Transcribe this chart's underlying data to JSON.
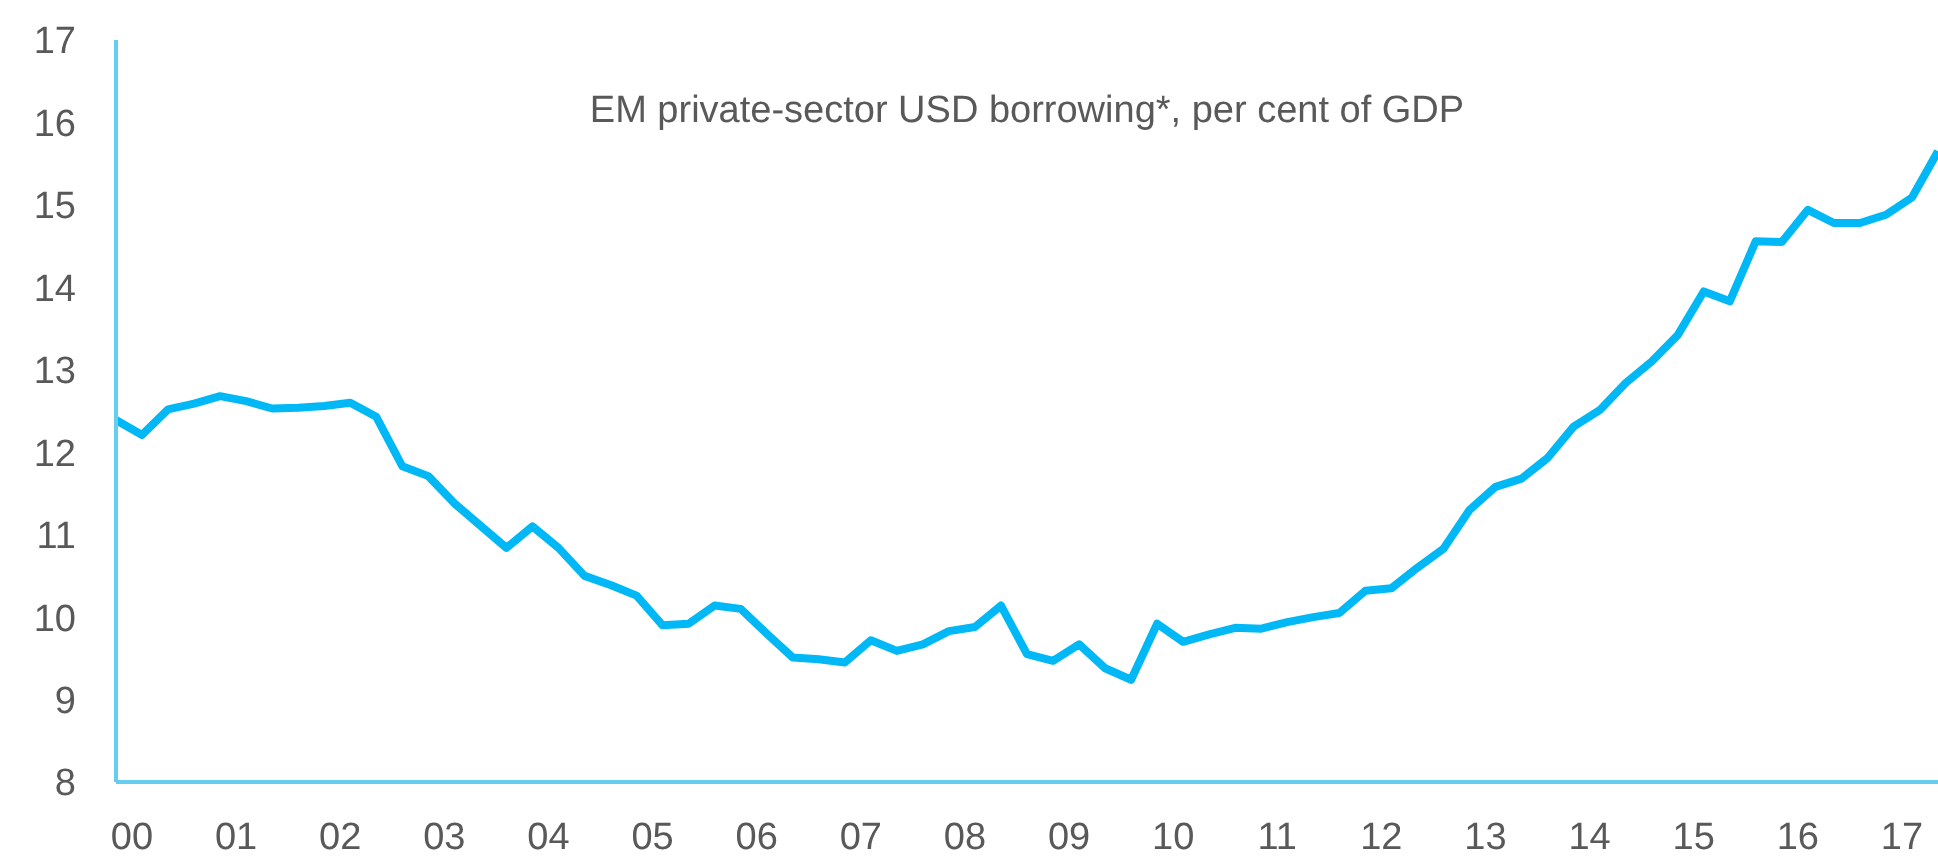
{
  "chart_data": {
    "type": "line",
    "title": "EM private-sector USD borrowing*, per cent of GDP",
    "x": [
      2000,
      2000.25,
      2000.5,
      2000.75,
      2001,
      2001.25,
      2001.5,
      2001.75,
      2002,
      2002.25,
      2002.5,
      2002.75,
      2003,
      2003.25,
      2003.5,
      2003.75,
      2004,
      2004.25,
      2004.5,
      2004.75,
      2005,
      2005.25,
      2005.5,
      2005.75,
      2006,
      2006.25,
      2006.5,
      2006.75,
      2007,
      2007.25,
      2007.5,
      2007.75,
      2008,
      2008.25,
      2008.5,
      2008.75,
      2009,
      2009.25,
      2009.5,
      2009.75,
      2010,
      2010.25,
      2010.5,
      2010.75,
      2011,
      2011.25,
      2011.5,
      2011.75,
      2012,
      2012.25,
      2012.5,
      2012.75,
      2013,
      2013.25,
      2013.5,
      2013.75,
      2014,
      2014.25,
      2014.5,
      2014.75,
      2015,
      2015.25,
      2015.5,
      2015.75,
      2016,
      2016.25,
      2016.5,
      2016.75,
      2017,
      2017.25,
      2017.5
    ],
    "series": [
      {
        "color": "#00b8f5",
        "values": [
          12.39,
          12.21,
          12.52,
          12.59,
          12.68,
          12.62,
          12.53,
          12.54,
          12.56,
          12.6,
          12.43,
          11.83,
          11.71,
          11.38,
          11.11,
          10.84,
          11.1,
          10.84,
          10.5,
          10.39,
          10.26,
          9.9,
          9.92,
          10.14,
          10.1,
          9.8,
          9.51,
          9.49,
          9.45,
          9.72,
          9.59,
          9.67,
          9.83,
          9.88,
          10.14,
          9.55,
          9.47,
          9.67,
          9.38,
          9.24,
          9.92,
          9.7,
          9.79,
          9.87,
          9.86,
          9.94,
          10.0,
          10.05,
          10.32,
          10.35,
          10.6,
          10.83,
          11.3,
          11.58,
          11.68,
          11.93,
          12.31,
          12.51,
          12.84,
          13.1,
          13.42,
          13.95,
          13.83,
          14.56,
          14.55,
          14.94,
          14.78,
          14.78,
          14.88,
          15.09,
          15.65
        ]
      }
    ],
    "xlim": [
      2000,
      2017.5
    ],
    "xticks": [
      {
        "value": 2000,
        "label": "00"
      },
      {
        "value": 2001,
        "label": "01"
      },
      {
        "value": 2002,
        "label": "02"
      },
      {
        "value": 2003,
        "label": "03"
      },
      {
        "value": 2004,
        "label": "04"
      },
      {
        "value": 2005,
        "label": "05"
      },
      {
        "value": 2006,
        "label": "06"
      },
      {
        "value": 2007,
        "label": "07"
      },
      {
        "value": 2008,
        "label": "08"
      },
      {
        "value": 2009,
        "label": "09"
      },
      {
        "value": 2010,
        "label": "10"
      },
      {
        "value": 2011,
        "label": "11"
      },
      {
        "value": 2012,
        "label": "12"
      },
      {
        "value": 2013,
        "label": "13"
      },
      {
        "value": 2014,
        "label": "14"
      },
      {
        "value": 2015,
        "label": "15"
      },
      {
        "value": 2016,
        "label": "16"
      },
      {
        "value": 2017,
        "label": "17"
      }
    ],
    "ylim": [
      8,
      17
    ],
    "yticks": [
      8,
      9,
      10,
      11,
      12,
      13,
      14,
      15,
      16,
      17
    ],
    "grid": false,
    "legend": false,
    "marker": "none",
    "line_style": "solid"
  }
}
